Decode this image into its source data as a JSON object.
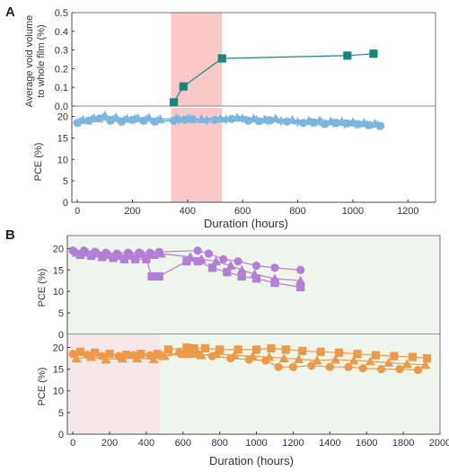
{
  "colors": {
    "teal": "#17877b",
    "blue": "#7cb6de",
    "purple": "#b37fd6",
    "orange": "#ec9a4a",
    "highlight_red": "#f9c8c8",
    "bg_green": "#eef5ea",
    "bg_pink": "#f6e8e8",
    "zero_line": "#888888"
  },
  "chart_data": [
    {
      "panel": "A",
      "type": "line",
      "ylabel_line1": "Average void volume",
      "ylabel_line2": "to whole film (%)",
      "ylim": [
        0,
        0.5
      ],
      "yticks": [
        "0.0",
        "0.1",
        "0.2",
        "0.3",
        "0.4",
        "0.5"
      ],
      "shaded_region": [
        340,
        525
      ],
      "series": [
        {
          "marker": "square",
          "color": "teal",
          "x": [
            350,
            385,
            525,
            980,
            1075
          ],
          "y": [
            0.02,
            0.105,
            0.255,
            0.27,
            0.28
          ]
        }
      ]
    },
    {
      "panel": "A-bottom",
      "type": "scatter",
      "ylabel": "PCE (%)",
      "ylim": [
        0,
        22
      ],
      "yticks": [
        "0",
        "5",
        "10",
        "15",
        "20"
      ],
      "xlim": [
        -20,
        1300
      ],
      "xticks": [
        "0",
        "200",
        "400",
        "600",
        "800",
        "1000",
        "1200"
      ],
      "xlabel": "Duration (hours)",
      "shaded_region": [
        340,
        525
      ],
      "series": [
        {
          "marker": "circle",
          "color": "blue",
          "x": [
            0,
            40,
            80,
            120,
            160,
            200,
            240,
            280,
            350,
            390,
            420,
            500,
            560,
            620,
            660,
            700,
            760,
            820,
            860,
            900,
            940,
            980,
            1020,
            1060,
            1100
          ],
          "y": [
            18.5,
            19,
            19.5,
            19,
            18.8,
            19.2,
            19,
            18.8,
            19,
            19.2,
            19.3,
            19.2,
            19.4,
            19,
            18.9,
            19.1,
            18.8,
            18.5,
            18.6,
            18.3,
            18.5,
            18.4,
            18.2,
            18,
            17.8
          ]
        },
        {
          "marker": "triangle",
          "color": "blue",
          "x": [
            20,
            60,
            100,
            140,
            180,
            220,
            260,
            300,
            360,
            400,
            450,
            520,
            580,
            640,
            680,
            720,
            780,
            840,
            880,
            920,
            960,
            1000,
            1040,
            1080
          ],
          "y": [
            19.2,
            19.6,
            20.2,
            19.8,
            19.5,
            19.6,
            19.7,
            19.4,
            19.6,
            19.5,
            19.4,
            19.5,
            19.7,
            19.5,
            19.3,
            19.5,
            19.2,
            19,
            19.1,
            18.9,
            18.8,
            18.7,
            18.5,
            18.3
          ]
        },
        {
          "marker": "star",
          "color": "blue",
          "x": [
            10,
            50,
            90,
            130,
            170,
            210,
            250,
            290,
            370,
            410,
            470,
            540,
            600,
            650,
            690,
            740,
            800,
            850,
            890,
            930,
            970,
            1010,
            1050,
            1090
          ],
          "y": [
            18.8,
            19.2,
            19.6,
            19.3,
            19.1,
            19.4,
            19.3,
            19,
            19.2,
            19.4,
            19.1,
            19.3,
            19.5,
            19.2,
            19,
            18.9,
            18.7,
            18.6,
            18.4,
            18.5,
            18.3,
            18.2,
            18.1,
            18
          ]
        }
      ]
    },
    {
      "panel": "B",
      "type": "line",
      "ylabel": "PCE (%)",
      "ylim": [
        0,
        23
      ],
      "yticks": [
        "0",
        "5",
        "10",
        "15",
        "20"
      ],
      "series": [
        {
          "marker": "circle",
          "color": "purple",
          "x": [
            0,
            60,
            120,
            180,
            240,
            300,
            360,
            420,
            470,
            680,
            740,
            820,
            900,
            1000,
            1100,
            1240
          ],
          "y": [
            19.5,
            19.5,
            19.2,
            19,
            18.8,
            19,
            19,
            19,
            19.2,
            19.5,
            18.8,
            17.5,
            17,
            16,
            15.5,
            15
          ]
        },
        {
          "marker": "triangle",
          "color": "purple",
          "x": [
            20,
            80,
            140,
            200,
            260,
            320,
            380,
            440,
            480,
            640,
            700,
            780,
            860,
            920,
            990,
            1100,
            1240
          ],
          "y": [
            19,
            19,
            18.8,
            18.5,
            18.3,
            18.5,
            18.7,
            18.5,
            18.8,
            18,
            17.5,
            17,
            16,
            15,
            14,
            13,
            12.5
          ]
        },
        {
          "marker": "square",
          "color": "purple",
          "x": [
            40,
            100,
            160,
            220,
            280,
            340,
            400,
            430,
            470,
            620,
            680,
            760,
            840,
            920,
            1000,
            1100,
            1240
          ],
          "y": [
            18.5,
            18.3,
            18,
            17.8,
            17.5,
            17.5,
            17.5,
            13.5,
            13.5,
            17,
            17,
            15.5,
            14.5,
            13.5,
            13,
            12,
            11
          ]
        }
      ]
    },
    {
      "panel": "B-bottom",
      "type": "line",
      "ylabel": "PCE (%)",
      "ylim": [
        0,
        23
      ],
      "yticks": [
        "0",
        "5",
        "10",
        "15",
        "20"
      ],
      "xlim": [
        -30,
        2000
      ],
      "xticks": [
        "0",
        "200",
        "400",
        "600",
        "800",
        "1000",
        "1200",
        "1400",
        "1600",
        "1800",
        "2000"
      ],
      "xlabel": "Duration (hours)",
      "shaded_region": [
        -30,
        480
      ],
      "series": [
        {
          "marker": "circle",
          "color": "orange",
          "x": [
            0,
            80,
            160,
            250,
            330,
            420,
            480,
            580,
            620,
            680,
            760,
            860,
            960,
            1050,
            1120,
            1200,
            1300,
            1400,
            1500,
            1580,
            1680,
            1780,
            1880
          ],
          "y": [
            18.5,
            18.3,
            18,
            18,
            18.2,
            18.2,
            18,
            18.8,
            19,
            18.5,
            18,
            17.5,
            17.2,
            17,
            15.5,
            15.5,
            15.8,
            15.5,
            15.5,
            15.2,
            15,
            15,
            14.8
          ]
        },
        {
          "marker": "triangle",
          "color": "orange",
          "x": [
            20,
            100,
            180,
            270,
            350,
            440,
            500,
            600,
            640,
            700,
            780,
            880,
            980,
            1070,
            1150,
            1230,
            1330,
            1430,
            1530,
            1620,
            1720,
            1820,
            1920
          ],
          "y": [
            17.5,
            17.8,
            17.2,
            17.5,
            17.5,
            17.3,
            18,
            18.5,
            18.5,
            18.2,
            18.5,
            18.2,
            18,
            17.8,
            17.5,
            17.3,
            17,
            17.2,
            17,
            16.8,
            16.5,
            16.2,
            16
          ]
        },
        {
          "marker": "square",
          "color": "orange",
          "x": [
            40,
            120,
            200,
            290,
            370,
            460,
            520,
            620,
            660,
            720,
            800,
            900,
            1000,
            1080,
            1160,
            1250,
            1350,
            1450,
            1550,
            1650,
            1750,
            1850,
            1930
          ],
          "y": [
            19,
            18.8,
            18.5,
            18.3,
            18.5,
            18.5,
            19.5,
            20,
            19.8,
            19.8,
            19.5,
            19.5,
            19.5,
            19.8,
            19.5,
            19.2,
            19,
            18.8,
            18.5,
            18.2,
            18,
            17.8,
            17.5
          ]
        }
      ]
    }
  ]
}
